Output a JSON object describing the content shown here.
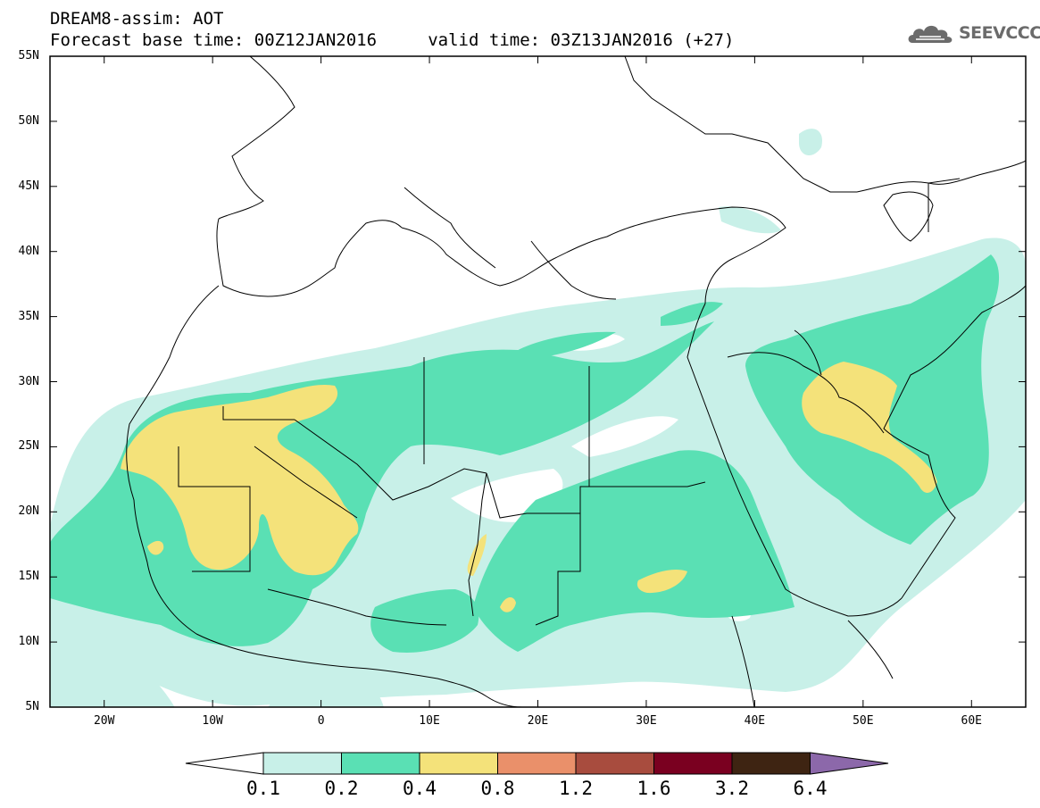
{
  "title": {
    "line1": "DREAM8-assim: AOT",
    "line2": "Forecast base time: 00Z12JAN2016     valid time: 03Z13JAN2016 (+27)"
  },
  "logo": {
    "text": "SEEVCCC",
    "icon": "cloud-icon"
  },
  "map": {
    "variable": "AOT",
    "lon_range": [
      -25,
      65
    ],
    "lat_range": [
      5,
      55
    ],
    "lat_labels": [
      "55N",
      "50N",
      "45N",
      "40N",
      "35N",
      "30N",
      "25N",
      "20N",
      "15N",
      "10N",
      "5N"
    ],
    "lon_labels": [
      "20W",
      "10W",
      "0",
      "10E",
      "20E",
      "30E",
      "40E",
      "50E",
      "60E"
    ]
  },
  "colorbar": {
    "labels": [
      "0.1",
      "0.2",
      "0.4",
      "0.8",
      "1.2",
      "1.6",
      "3.2",
      "6.4"
    ],
    "colors": [
      "#ffffff",
      "#c8f0e8",
      "#5ae0b4",
      "#f4e27a",
      "#ea906a",
      "#a84c3e",
      "#7a0020",
      "#3e2412",
      "#8c68aa"
    ]
  }
}
